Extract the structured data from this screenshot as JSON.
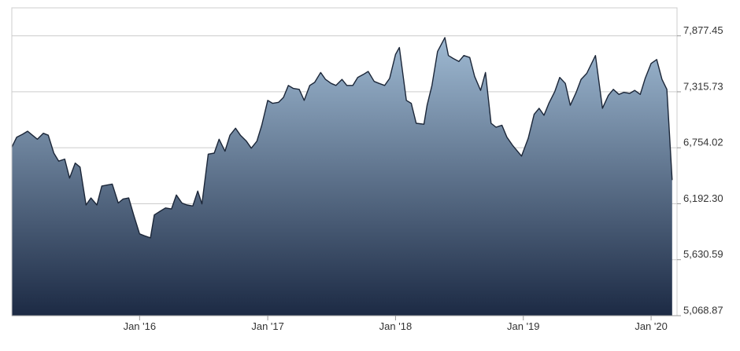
{
  "chart_data": {
    "type": "area",
    "title": "",
    "xlabel": "",
    "ylabel": "",
    "x_range": [
      "2015-01-01",
      "2020-03-15"
    ],
    "ylim": [
      5068.87,
      8158.31
    ],
    "y_ticks": [
      7877.45,
      7315.73,
      6754.02,
      6192.3,
      5630.59,
      5068.87
    ],
    "y_tick_labels": [
      "7,877.45",
      "7,315.73",
      "6,754.02",
      "6,192.30",
      "5,630.59",
      "5,068.87"
    ],
    "x_ticks": [
      "2016-01-01",
      "2017-01-01",
      "2018-01-01",
      "2019-01-01",
      "2020-01-01"
    ],
    "x_tick_labels": [
      "Jan '16",
      "Jan '17",
      "Jan '18",
      "Jan '19",
      "Jan '20"
    ],
    "grid": "horizontal",
    "legend": "none",
    "colors": {
      "line": "#1b2638",
      "fill_top": "#9fbad3",
      "fill_bottom": "#1c2a44",
      "grid": "#cccccc",
      "axis": "#999999"
    },
    "series": [
      {
        "x": [
          "2015-01-01",
          "2015-01-15",
          "2015-02-01",
          "2015-02-15",
          "2015-03-01",
          "2015-03-15",
          "2015-04-01",
          "2015-04-15",
          "2015-05-01",
          "2015-05-15",
          "2015-06-01",
          "2015-06-15",
          "2015-07-01",
          "2015-07-15",
          "2015-08-01",
          "2015-08-15",
          "2015-09-01",
          "2015-09-15",
          "2015-10-01",
          "2015-10-15",
          "2015-11-01",
          "2015-11-15",
          "2015-12-01",
          "2015-12-15",
          "2016-01-01",
          "2016-01-15",
          "2016-02-01",
          "2016-02-12",
          "2016-03-01",
          "2016-03-15",
          "2016-04-01",
          "2016-04-15",
          "2016-05-01",
          "2016-05-15",
          "2016-06-01",
          "2016-06-15",
          "2016-06-27",
          "2016-07-15",
          "2016-08-01",
          "2016-08-15",
          "2016-09-01",
          "2016-09-15",
          "2016-10-01",
          "2016-10-15",
          "2016-11-01",
          "2016-11-15",
          "2016-12-01",
          "2016-12-15",
          "2017-01-01",
          "2017-01-15",
          "2017-02-01",
          "2017-02-15",
          "2017-03-01",
          "2017-03-15",
          "2017-04-01",
          "2017-04-15",
          "2017-05-01",
          "2017-05-15",
          "2017-06-01",
          "2017-06-15",
          "2017-07-01",
          "2017-07-15",
          "2017-08-01",
          "2017-08-15",
          "2017-09-01",
          "2017-09-15",
          "2017-10-01",
          "2017-10-15",
          "2017-11-01",
          "2017-11-15",
          "2017-12-01",
          "2017-12-15",
          "2018-01-01",
          "2018-01-12",
          "2018-02-01",
          "2018-02-15",
          "2018-03-01",
          "2018-03-23",
          "2018-04-01",
          "2018-04-15",
          "2018-05-01",
          "2018-05-22",
          "2018-06-01",
          "2018-06-15",
          "2018-07-01",
          "2018-07-15",
          "2018-08-01",
          "2018-08-15",
          "2018-09-01",
          "2018-09-15",
          "2018-10-01",
          "2018-10-15",
          "2018-11-01",
          "2018-11-15",
          "2018-12-01",
          "2018-12-27",
          "2019-01-15",
          "2019-02-01",
          "2019-02-15",
          "2019-03-01",
          "2019-03-15",
          "2019-04-01",
          "2019-04-15",
          "2019-05-01",
          "2019-05-15",
          "2019-06-01",
          "2019-06-15",
          "2019-07-01",
          "2019-07-26",
          "2019-08-15",
          "2019-09-01",
          "2019-09-15",
          "2019-10-01",
          "2019-10-15",
          "2019-11-01",
          "2019-11-15",
          "2019-12-01",
          "2019-12-15",
          "2020-01-01",
          "2020-01-17",
          "2020-02-01",
          "2020-02-15",
          "2020-02-24",
          "2020-03-01"
        ],
        "y": [
          6760,
          6860,
          6890,
          6920,
          6880,
          6840,
          6900,
          6880,
          6700,
          6620,
          6640,
          6450,
          6600,
          6560,
          6180,
          6250,
          6180,
          6370,
          6380,
          6390,
          6200,
          6240,
          6250,
          6080,
          5890,
          5870,
          5850,
          6080,
          6120,
          6150,
          6140,
          6280,
          6200,
          6180,
          6170,
          6320,
          6190,
          6690,
          6700,
          6840,
          6720,
          6880,
          6950,
          6880,
          6820,
          6750,
          6820,
          6980,
          7230,
          7200,
          7210,
          7260,
          7380,
          7350,
          7340,
          7230,
          7380,
          7410,
          7510,
          7440,
          7400,
          7380,
          7440,
          7380,
          7380,
          7460,
          7490,
          7520,
          7420,
          7400,
          7380,
          7450,
          7690,
          7760,
          7230,
          7200,
          7000,
          6990,
          7180,
          7380,
          7720,
          7860,
          7680,
          7650,
          7620,
          7680,
          7660,
          7470,
          7330,
          7510,
          7000,
          6960,
          6980,
          6860,
          6780,
          6670,
          6850,
          7090,
          7150,
          7080,
          7200,
          7320,
          7460,
          7400,
          7180,
          7310,
          7440,
          7500,
          7680,
          7150,
          7280,
          7340,
          7290,
          7310,
          7300,
          7330,
          7290,
          7450,
          7600,
          7640,
          7440,
          7340,
          6800,
          6430
        ]
      }
    ]
  }
}
